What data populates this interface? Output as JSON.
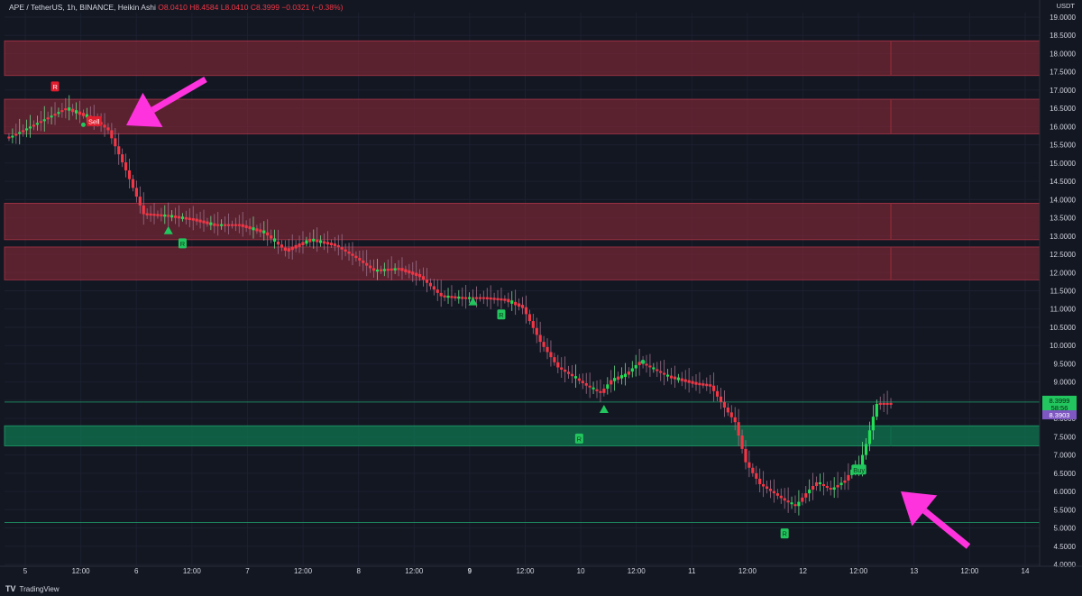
{
  "header": {
    "symbol": "APE / TetherUS, 1h, BINANCE, Heikin Ashi",
    "open": "O8.0410",
    "high": "H8.4584",
    "low": "L8.0410",
    "close": "C8.3999",
    "change": "−0.0321 (−0.38%)"
  },
  "axis_unit": "USDT",
  "footer": {
    "logo": "TV",
    "brand": "TradingView"
  },
  "colors": {
    "background": "#131722",
    "bull": "#26a69a",
    "bull_bright": "#22dd55",
    "bear": "#f23645",
    "resistance_zone": "#8a2a38",
    "support_zone": "#0f6b4a",
    "arrow": "#ff33dd",
    "price_label": "#22c55e",
    "line_label": "#7e57c2"
  },
  "chart_data": {
    "type": "candlestick",
    "ylim": [
      4.0,
      19.5
    ],
    "y_ticks": [
      "19.0000",
      "18.5000",
      "18.0000",
      "17.5000",
      "17.0000",
      "16.5000",
      "16.0000",
      "15.5000",
      "15.0000",
      "14.5000",
      "14.0000",
      "13.5000",
      "13.0000",
      "12.5000",
      "12.0000",
      "11.5000",
      "11.0000",
      "10.5000",
      "10.0000",
      "9.5000",
      "9.0000",
      "8.5000",
      "8.0000",
      "7.5000",
      "7.0000",
      "6.5000",
      "6.0000",
      "5.5000",
      "5.0000",
      "4.5000",
      "4.0000"
    ],
    "x_ticks": [
      "5",
      "12:00",
      "6",
      "12:00",
      "7",
      "12:00",
      "8",
      "12:00",
      "9",
      "12:00",
      "10",
      "12:00",
      "11",
      "12:00",
      "12",
      "12:00",
      "13",
      "12:00",
      "14"
    ],
    "price_path": [
      [
        0,
        15.7
      ],
      [
        8,
        16.1
      ],
      [
        16,
        16.5
      ],
      [
        24,
        16.2
      ],
      [
        28,
        15.9
      ],
      [
        33,
        14.8
      ],
      [
        38,
        13.6
      ],
      [
        45,
        13.55
      ],
      [
        52,
        13.45
      ],
      [
        58,
        13.3
      ],
      [
        65,
        13.3
      ],
      [
        72,
        13.1
      ],
      [
        78,
        12.6
      ],
      [
        85,
        12.9
      ],
      [
        92,
        12.75
      ],
      [
        98,
        12.4
      ],
      [
        103,
        12.05
      ],
      [
        110,
        12.1
      ],
      [
        116,
        11.9
      ],
      [
        122,
        11.35
      ],
      [
        128,
        11.3
      ],
      [
        134,
        11.3
      ],
      [
        140,
        11.25
      ],
      [
        145,
        11.05
      ],
      [
        150,
        10.1
      ],
      [
        155,
        9.4
      ],
      [
        160,
        9.1
      ],
      [
        163,
        8.9
      ],
      [
        167,
        8.7
      ],
      [
        170,
        9.05
      ],
      [
        174,
        9.2
      ],
      [
        178,
        9.55
      ],
      [
        182,
        9.35
      ],
      [
        186,
        9.15
      ],
      [
        190,
        9.05
      ],
      [
        194,
        8.95
      ],
      [
        198,
        8.9
      ],
      [
        202,
        8.3
      ],
      [
        205,
        7.9
      ],
      [
        208,
        6.8
      ],
      [
        212,
        6.2
      ],
      [
        216,
        5.95
      ],
      [
        219,
        5.75
      ],
      [
        222,
        5.6
      ],
      [
        225,
        5.95
      ],
      [
        228,
        6.25
      ],
      [
        232,
        6.05
      ],
      [
        236,
        6.3
      ],
      [
        238,
        6.6
      ],
      [
        240,
        6.7
      ],
      [
        242,
        7.3
      ],
      [
        244,
        8.05
      ],
      [
        245,
        8.4
      ]
    ],
    "bullish_candles": [
      1,
      3,
      5,
      6,
      8,
      10,
      12,
      14,
      17,
      19,
      22,
      44,
      46,
      49,
      57,
      60,
      69,
      72,
      75,
      84,
      86,
      88,
      104,
      106,
      109,
      124,
      127,
      130,
      142,
      160,
      165,
      169,
      171,
      173,
      174,
      176,
      177,
      182,
      186,
      189,
      221,
      223,
      226,
      229,
      233,
      235,
      238,
      239,
      240,
      241,
      242,
      243,
      244,
      245
    ],
    "zones": [
      {
        "kind": "resistance",
        "from": 17.4,
        "to": 18.35
      },
      {
        "kind": "resistance",
        "from": 15.8,
        "to": 16.75
      },
      {
        "kind": "resistance",
        "from": 12.9,
        "to": 13.9
      },
      {
        "kind": "resistance",
        "from": 11.8,
        "to": 12.7
      },
      {
        "kind": "support",
        "from": 7.25,
        "to": 7.8
      }
    ],
    "support_lines": [
      8.45,
      5.15
    ],
    "signals": [
      {
        "label": "R",
        "kind": "bear",
        "bar": 13,
        "price": 17.1
      },
      {
        "label": "Sell",
        "kind": "bear",
        "bar": 24,
        "price": 16.15
      },
      {
        "label": "R",
        "kind": "bull",
        "bar": 49,
        "price": 12.8
      },
      {
        "label": "R",
        "kind": "bull",
        "bar": 139,
        "price": 10.85
      },
      {
        "label": "R",
        "kind": "bull",
        "bar": 161,
        "price": 7.45
      },
      {
        "label": "R",
        "kind": "bull",
        "bar": 219,
        "price": 4.85
      },
      {
        "label": "Buy",
        "kind": "bull",
        "bar": 240,
        "price": 6.6
      }
    ],
    "markers": [
      {
        "shape": "triangle",
        "bar": 45,
        "price": 13.15
      },
      {
        "shape": "triangle",
        "bar": 131,
        "price": 11.2
      },
      {
        "shape": "triangle",
        "bar": 168,
        "price": 8.25
      },
      {
        "shape": "dot",
        "bar": 21,
        "price": 16.05
      },
      {
        "shape": "dot",
        "bar": 179,
        "price": 9.55
      }
    ],
    "price_labels": [
      {
        "kind": "last",
        "text": "8.3999",
        "price": 8.5
      },
      {
        "kind": "timer",
        "text": "58:56",
        "price": 8.3
      },
      {
        "kind": "line",
        "text": "8.3903",
        "price": 8.1
      }
    ]
  }
}
